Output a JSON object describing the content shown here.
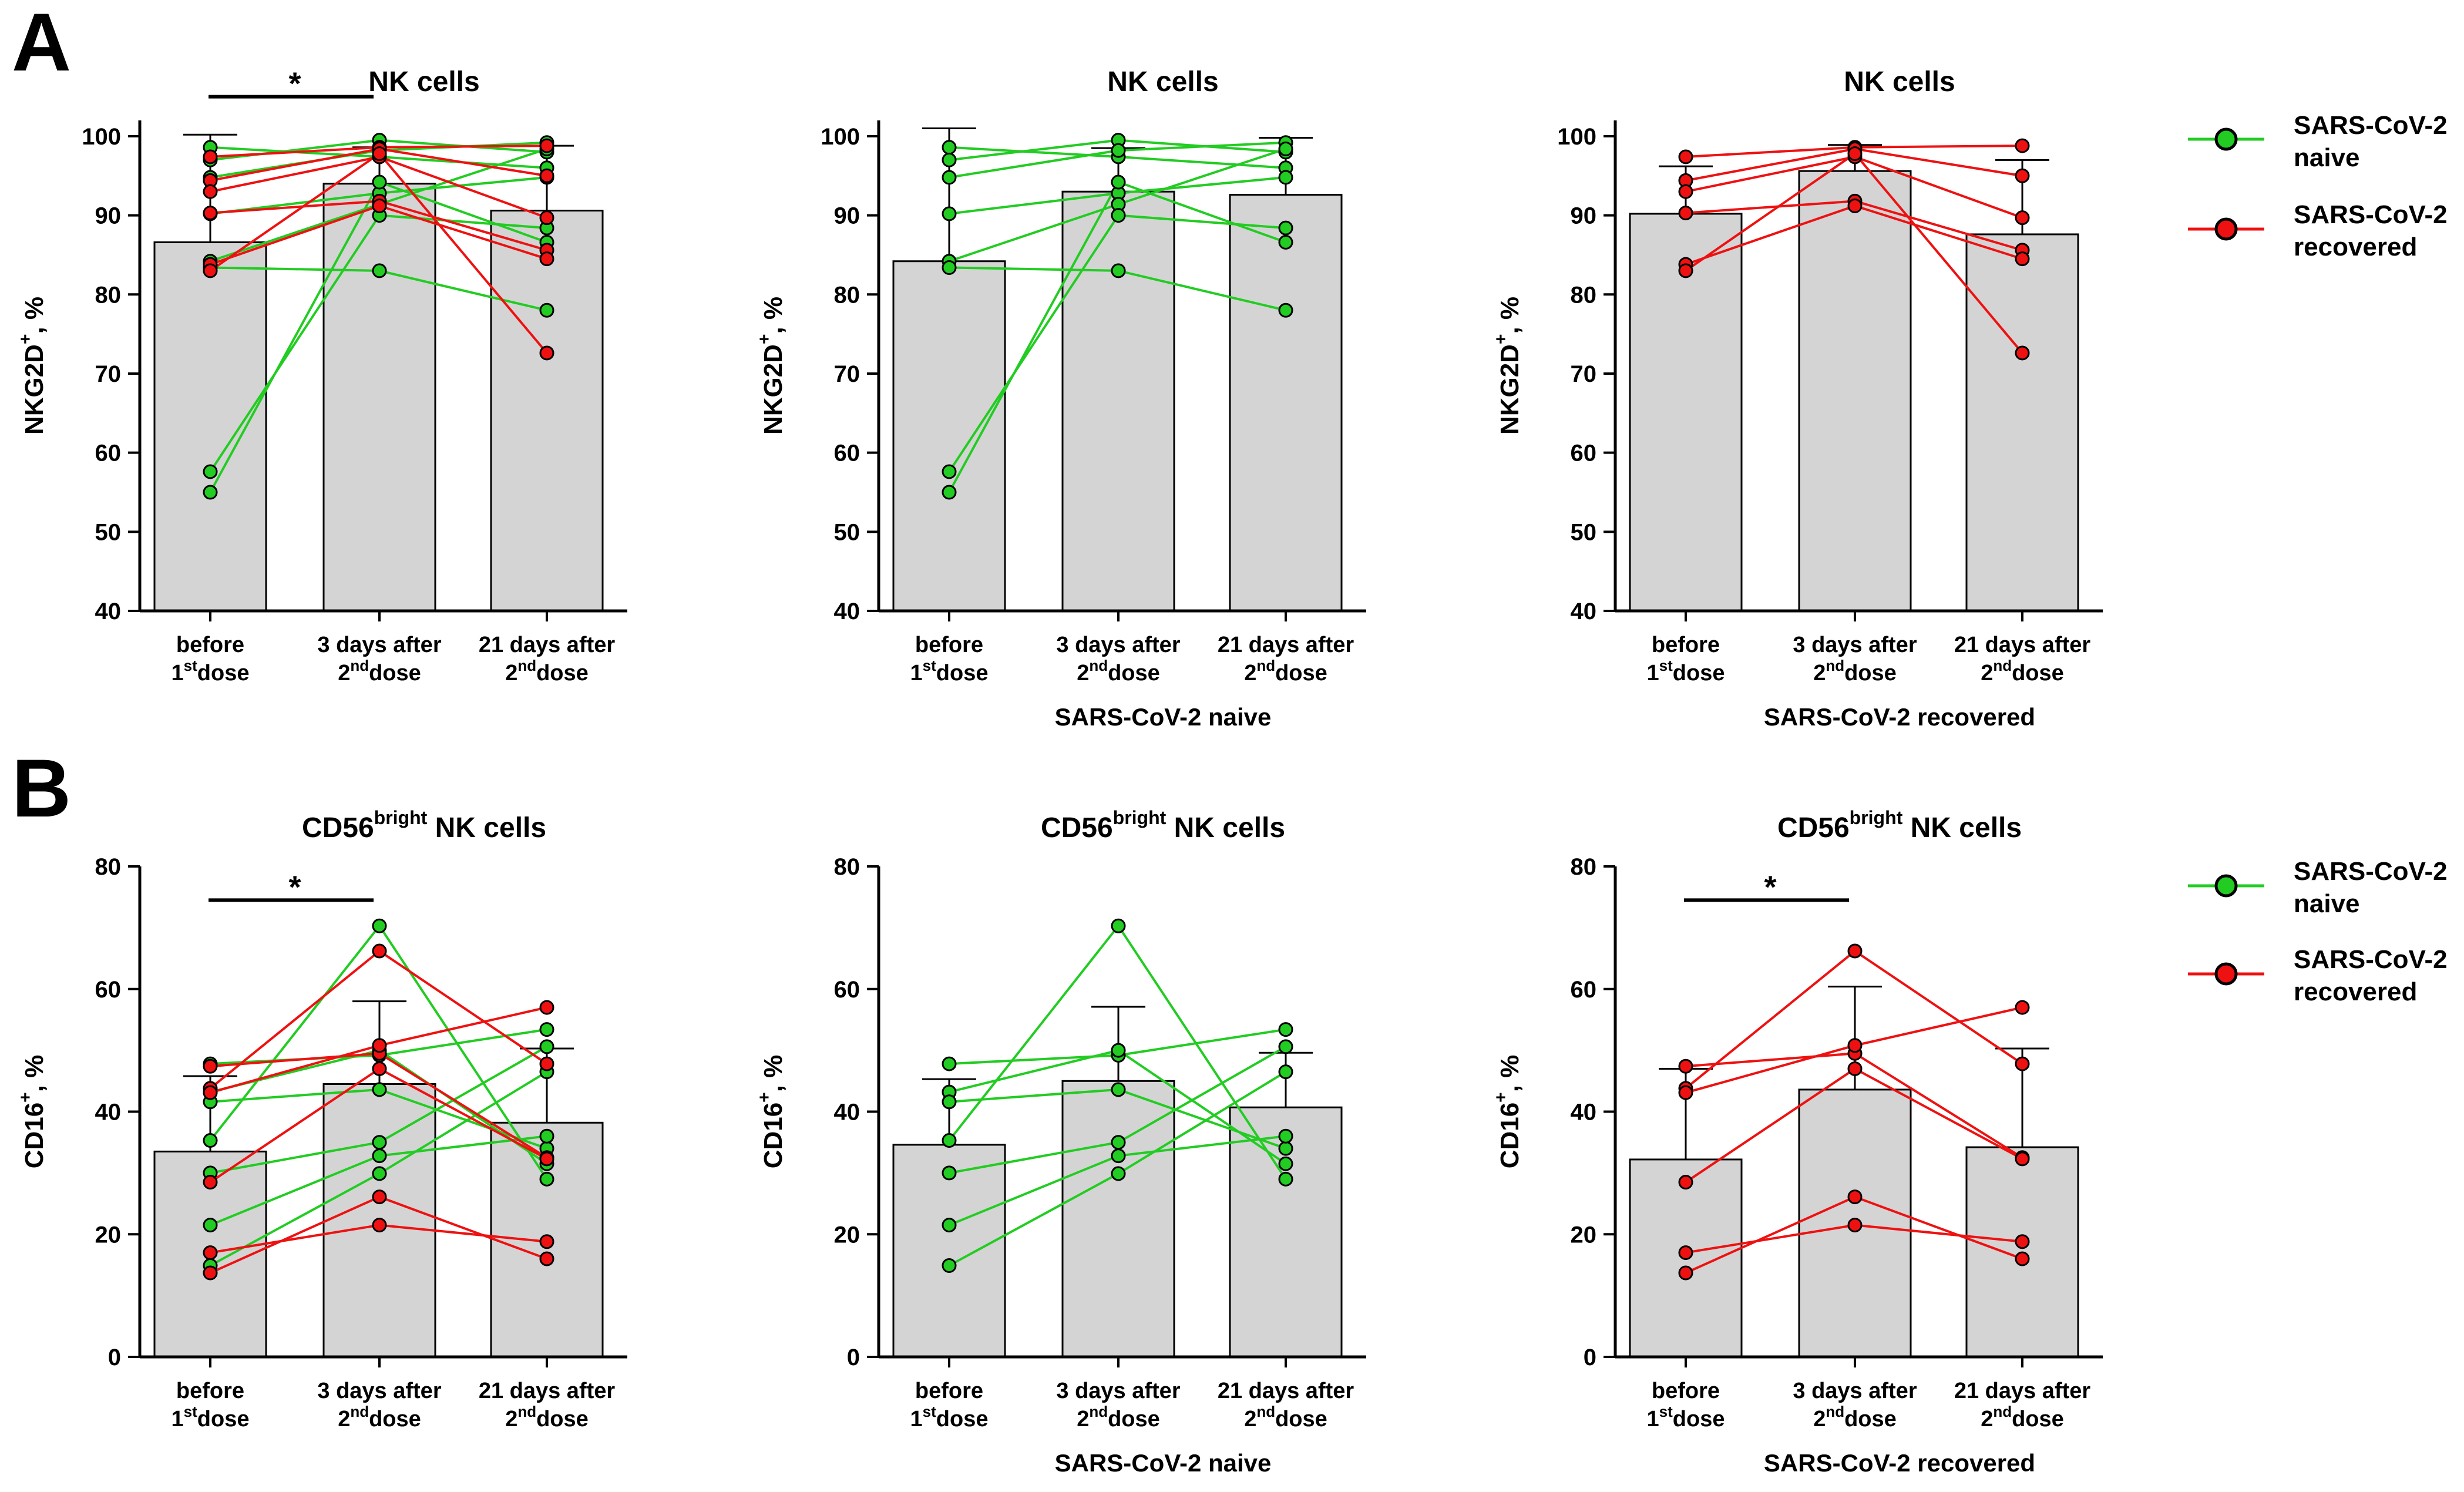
{
  "panel_labels": [
    "A",
    "B"
  ],
  "legend": {
    "naive": {
      "line1": "SARS-CoV-2",
      "line2": "naive"
    },
    "recovered": {
      "line1": "SARS-CoV-2",
      "line2": "recovered"
    }
  },
  "colors": {
    "naive": "#22cc22",
    "recovered": "#ee1111",
    "bar": "#d4d4d4",
    "axis": "#000000"
  },
  "x_tick_labels": [
    {
      "line1": "before",
      "sup": "st",
      "pre": "1",
      "post": "dose"
    },
    {
      "line1": "3 days after",
      "sup": "nd",
      "pre": "2",
      "post": "dose"
    },
    {
      "line1": "21 days after",
      "sup": "nd",
      "pre": "2",
      "post": "dose"
    }
  ],
  "chart_data": [
    {
      "type": "bar",
      "row": "A",
      "col": 0,
      "title": "NK cells",
      "title_sup": "",
      "title_pre": "NK cells",
      "ylabel_pre": "NKG2D",
      "ylabel_sup": "+",
      "ylabel_post": ", %",
      "xlabel": "",
      "ylim": [
        40,
        102
      ],
      "yticks": [
        40,
        50,
        60,
        70,
        80,
        90,
        100
      ],
      "bar_values": [
        86.6,
        94.0,
        90.6
      ],
      "error_upper": [
        100.2,
        98.6,
        98.8
      ],
      "significance": [
        {
          "from": 0,
          "to": 1,
          "label": "*",
          "y": 105
        }
      ],
      "naive_lines": [
        [
          98.6,
          97.4,
          96.0
        ],
        [
          97.0,
          99.5,
          98.0
        ],
        [
          94.8,
          98.2,
          99.2
        ],
        [
          90.2,
          92.8,
          94.8
        ],
        [
          84.2,
          91.4,
          98.4
        ],
        [
          83.4,
          83.0,
          78.0
        ],
        [
          57.6,
          90.0,
          88.4
        ],
        [
          55.0,
          94.2,
          86.6
        ]
      ],
      "recovered_lines": [
        [
          97.4,
          98.6,
          98.8
        ],
        [
          94.4,
          98.4,
          95.0
        ],
        [
          93.0,
          97.4,
          89.7
        ],
        [
          90.3,
          91.8,
          85.6
        ],
        [
          83.8,
          91.2,
          84.5
        ],
        [
          83.0,
          97.8,
          72.6
        ]
      ]
    },
    {
      "type": "bar",
      "row": "A",
      "col": 1,
      "title": "NK cells",
      "title_sup": "",
      "title_pre": "NK cells",
      "ylabel_pre": "NKG2D",
      "ylabel_sup": "+",
      "ylabel_post": ", %",
      "xlabel": "SARS-CoV-2 naive",
      "ylim": [
        40,
        102
      ],
      "yticks": [
        40,
        50,
        60,
        70,
        80,
        90,
        100
      ],
      "bar_values": [
        84.2,
        93.0,
        92.6
      ],
      "error_upper": [
        101.0,
        98.5,
        99.8
      ],
      "significance": [],
      "naive_lines": [
        [
          98.6,
          97.4,
          96.0
        ],
        [
          97.0,
          99.5,
          98.0
        ],
        [
          94.8,
          98.2,
          99.2
        ],
        [
          90.2,
          92.8,
          94.8
        ],
        [
          84.2,
          91.4,
          98.4
        ],
        [
          83.4,
          83.0,
          78.0
        ],
        [
          57.6,
          90.0,
          88.4
        ],
        [
          55.0,
          94.2,
          86.6
        ]
      ],
      "recovered_lines": []
    },
    {
      "type": "bar",
      "row": "A",
      "col": 2,
      "title": "NK cells",
      "title_sup": "",
      "title_pre": "NK cells",
      "ylabel_pre": "NKG2D",
      "ylabel_sup": "+",
      "ylabel_post": ", %",
      "xlabel": "SARS-CoV-2 recovered",
      "ylim": [
        40,
        102
      ],
      "yticks": [
        40,
        50,
        60,
        70,
        80,
        90,
        100
      ],
      "bar_values": [
        90.2,
        95.6,
        87.6
      ],
      "error_upper": [
        96.2,
        98.9,
        97.0
      ],
      "significance": [],
      "naive_lines": [],
      "recovered_lines": [
        [
          97.4,
          98.6,
          98.8
        ],
        [
          94.4,
          98.4,
          95.0
        ],
        [
          93.0,
          97.4,
          89.7
        ],
        [
          90.3,
          91.8,
          85.6
        ],
        [
          83.8,
          91.2,
          84.5
        ],
        [
          83.0,
          97.8,
          72.6
        ]
      ]
    },
    {
      "type": "bar",
      "row": "B",
      "col": 0,
      "title": "CD56 NK cells",
      "title_pre": "CD56",
      "title_sup": "bright",
      "title_post": " NK cells",
      "ylabel_pre": "CD16",
      "ylabel_sup": "+",
      "ylabel_post": ", %",
      "xlabel": "",
      "ylim": [
        0,
        80
      ],
      "yticks": [
        0,
        20,
        40,
        60,
        80
      ],
      "bar_values": [
        33.5,
        44.5,
        38.2
      ],
      "error_upper": [
        45.8,
        58.0,
        50.3
      ],
      "significance": [
        {
          "from": 0,
          "to": 1,
          "label": "*",
          "y": 74.5
        }
      ],
      "naive_lines": [
        [
          47.8,
          49.2,
          53.4
        ],
        [
          43.2,
          50.0,
          31.5
        ],
        [
          41.6,
          43.6,
          34.0
        ],
        [
          35.3,
          70.3,
          29.0
        ],
        [
          30.0,
          35.0,
          50.6
        ],
        [
          21.5,
          32.8,
          36.0
        ],
        [
          14.9,
          29.9,
          46.5
        ]
      ],
      "recovered_lines": [
        [
          47.4,
          49.5,
          32.5
        ],
        [
          43.8,
          66.2,
          47.8
        ],
        [
          43.1,
          50.8,
          57.0
        ],
        [
          28.5,
          47.0,
          32.3
        ],
        [
          17.0,
          21.5,
          18.8
        ],
        [
          13.7,
          26.1,
          16.0
        ]
      ]
    },
    {
      "type": "bar",
      "row": "B",
      "col": 1,
      "title": "CD56 NK cells",
      "title_pre": "CD56",
      "title_sup": "bright",
      "title_post": " NK cells",
      "ylabel_pre": "CD16",
      "ylabel_sup": "+",
      "ylabel_post": ", %",
      "xlabel": "SARS-CoV-2 naive",
      "ylim": [
        0,
        80
      ],
      "yticks": [
        0,
        20,
        40,
        60,
        80
      ],
      "bar_values": [
        34.6,
        45.0,
        40.7
      ],
      "error_upper": [
        45.3,
        57.1,
        49.6
      ],
      "significance": [],
      "naive_lines": [
        [
          47.8,
          49.2,
          53.4
        ],
        [
          43.2,
          50.0,
          31.5
        ],
        [
          41.6,
          43.6,
          34.0
        ],
        [
          35.3,
          70.3,
          29.0
        ],
        [
          30.0,
          35.0,
          50.6
        ],
        [
          21.5,
          32.8,
          36.0
        ],
        [
          14.9,
          29.9,
          46.5
        ]
      ],
      "recovered_lines": []
    },
    {
      "type": "bar",
      "row": "B",
      "col": 2,
      "title": "CD56 NK cells",
      "title_pre": "CD56",
      "title_sup": "bright",
      "title_post": " NK cells",
      "ylabel_pre": "CD16",
      "ylabel_sup": "+",
      "ylabel_post": ", %",
      "xlabel": "SARS-CoV-2 recovered",
      "ylim": [
        0,
        80
      ],
      "yticks": [
        0,
        20,
        40,
        60,
        80
      ],
      "bar_values": [
        32.2,
        43.6,
        34.2
      ],
      "error_upper": [
        47.0,
        60.4,
        50.3
      ],
      "significance": [
        {
          "from": 0,
          "to": 1,
          "label": "*",
          "y": 74.5
        }
      ],
      "naive_lines": [],
      "recovered_lines": [
        [
          47.4,
          49.5,
          32.5
        ],
        [
          43.8,
          66.2,
          47.8
        ],
        [
          43.1,
          50.8,
          57.0
        ],
        [
          28.5,
          47.0,
          32.3
        ],
        [
          17.0,
          21.5,
          18.8
        ],
        [
          13.7,
          26.1,
          16.0
        ]
      ]
    }
  ]
}
